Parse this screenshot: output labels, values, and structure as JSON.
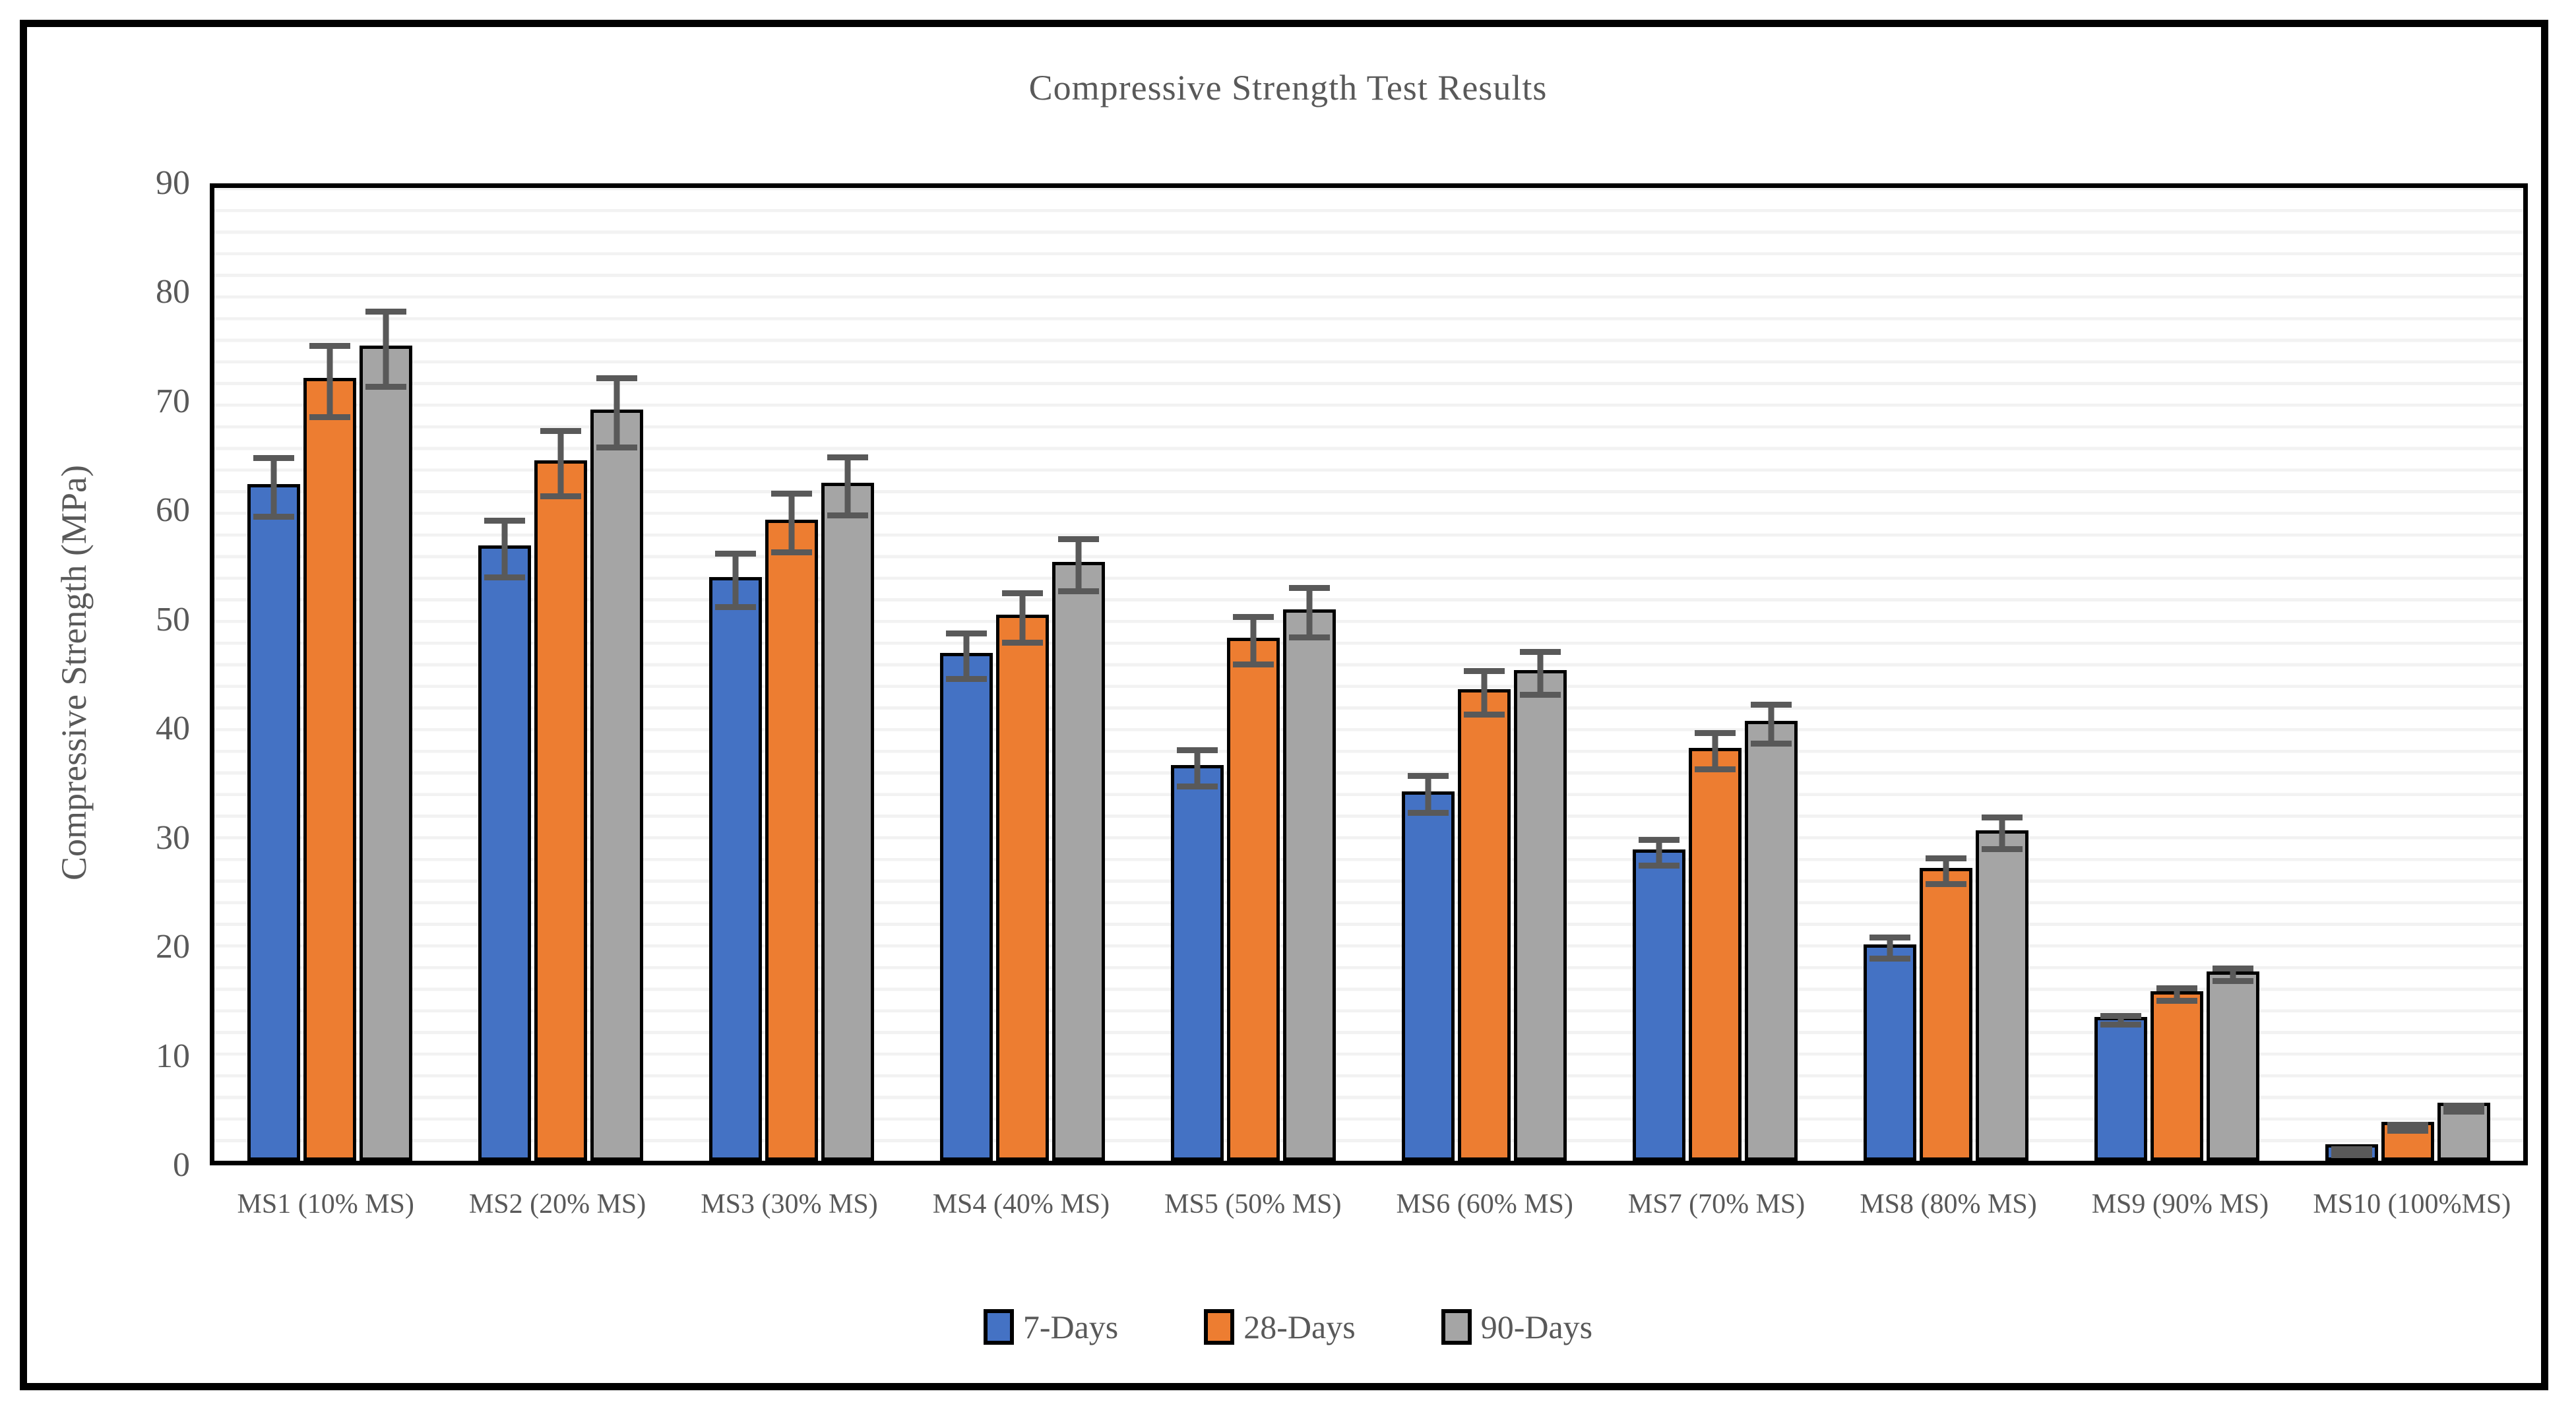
{
  "figure": {
    "title": "Compressive Strength Test Results"
  },
  "chart_data": {
    "type": "bar",
    "title": "Compressive Strength Test Results",
    "xlabel": "",
    "ylabel": "Compressive Strength (MPa)",
    "ylim": [
      0,
      90
    ],
    "ytick_step": 10,
    "yticks": [
      0,
      10,
      20,
      30,
      40,
      50,
      60,
      70,
      80,
      90
    ],
    "minor_gridline_step": 2,
    "grid": "horizontal-minor-only",
    "legend_position": "bottom-center",
    "error_bars": true,
    "categories": [
      "MS1 (10% MS)",
      "MS2 (20% MS)",
      "MS3 (30% MS)",
      "MS4 (40% MS)",
      "MS5 (50% MS)",
      "MS6 (60% MS)",
      "MS7 (70% MS)",
      "MS8 (80% MS)",
      "MS9 (90% MS)",
      "MS10 (100%MS)"
    ],
    "series": [
      {
        "name": "7-Days",
        "color": "#4472C4",
        "values": [
          62.6,
          56.9,
          54.0,
          47.0,
          36.6,
          34.2,
          28.8,
          20.0,
          13.3,
          1.5
        ],
        "errors": [
          3.0,
          2.9,
          2.8,
          2.4,
          2.0,
          2.0,
          1.5,
          1.3,
          0.7,
          0.3
        ]
      },
      {
        "name": "28-Days",
        "color": "#ED7D31",
        "values": [
          72.4,
          64.8,
          59.3,
          50.5,
          48.4,
          43.6,
          38.2,
          27.1,
          15.7,
          3.6
        ],
        "errors": [
          3.6,
          3.3,
          3.0,
          2.6,
          2.5,
          2.3,
          2.0,
          1.5,
          0.9,
          0.4
        ]
      },
      {
        "name": "90-Days",
        "color": "#A5A5A5",
        "values": [
          75.4,
          69.5,
          62.7,
          55.4,
          51.0,
          45.4,
          40.7,
          30.6,
          17.5,
          5.4
        ],
        "errors": [
          3.8,
          3.5,
          3.0,
          2.7,
          2.6,
          2.3,
          2.1,
          1.8,
          0.9,
          0.3
        ]
      }
    ],
    "colors": {
      "bar_border": "#000000",
      "error_bar": "#595959",
      "gridline": "#F2F2F2",
      "text": "#595959",
      "frame": "#000000"
    }
  }
}
